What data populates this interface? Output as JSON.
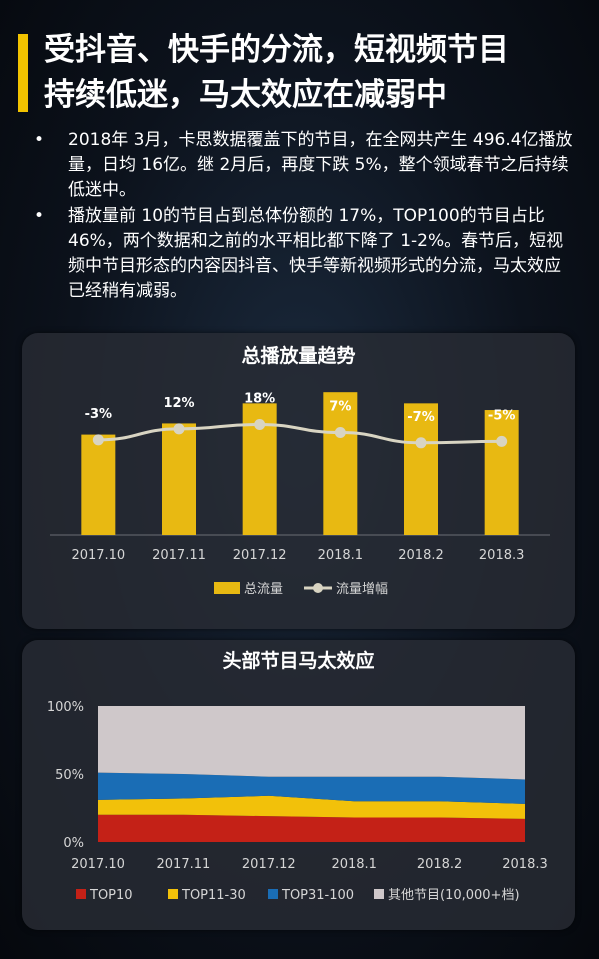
{
  "header": {
    "title_line1": "受抖音、快手的分流，短视频节目",
    "title_line2": "持续低迷，马太效应在减弱中"
  },
  "bullets": [
    "2018年 3月，卡思数据覆盖下的节目，在全网共产生 496.4亿播放量，日均 16亿。继 2月后，再度下跌 5%，整个领域春节之后持续低迷中。",
    "播放量前 10的节目占到总体份额的 17%，TOP100的节目占比 46%，两个数据和之前的水平相比都下降了 1-2%。春节后，短视频中节目形态的内容因抖音、快手等新视频形式的分流，马太效应已经稍有减弱。"
  ],
  "chart_data": [
    {
      "type": "bar",
      "title": "总播放量趋势",
      "categories": [
        "2017.10",
        "2017.11",
        "2017.12",
        "2018.1",
        "2018.2",
        "2018.3"
      ],
      "series": [
        {
          "name": "总流量",
          "type": "bar",
          "values": [
            45,
            50,
            59,
            64,
            59,
            56
          ]
        },
        {
          "name": "流量增幅",
          "type": "line",
          "values": [
            -3,
            12,
            18,
            7,
            -7,
            -5
          ],
          "labels": [
            "-3%",
            "12%",
            "18%",
            "7%",
            "-7%",
            "-5%"
          ]
        }
      ],
      "colors": {
        "bar": "#e8b912",
        "line": "#d8d4c2"
      },
      "legend_position": "bottom"
    },
    {
      "type": "area",
      "title": "头部节目马太效应",
      "categories": [
        "2017.10",
        "2017.11",
        "2017.12",
        "2018.1",
        "2018.2",
        "2018.3"
      ],
      "yticks": [
        "0%",
        "50%",
        "100%"
      ],
      "ylim": [
        0,
        100
      ],
      "stacked": true,
      "series": [
        {
          "name": "TOP10",
          "values": [
            20,
            20,
            19,
            18,
            18,
            17
          ],
          "color": "#c42117"
        },
        {
          "name": "TOP11-30",
          "values": [
            11,
            12,
            15,
            12,
            12,
            11
          ],
          "color": "#f2c10a"
        },
        {
          "name": "TOP31-100",
          "values": [
            20,
            18,
            14,
            18,
            18,
            18
          ],
          "color": "#1a6db5"
        },
        {
          "name": "其他节目(10,000+档)",
          "values": [
            49,
            50,
            52,
            52,
            52,
            54
          ],
          "color": "#cfc8ca"
        }
      ],
      "legend_position": "bottom"
    }
  ]
}
